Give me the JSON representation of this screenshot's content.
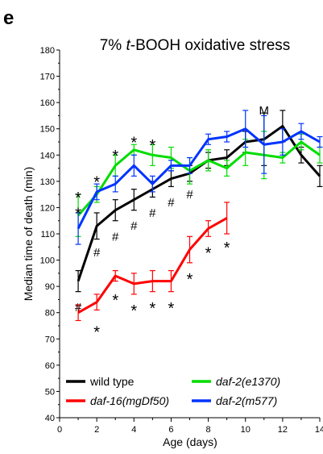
{
  "panel_label": "e",
  "chart_data": {
    "type": "line",
    "title_parts": [
      "7% ",
      "t",
      "-BOOH oxidative stress"
    ],
    "xlabel": "Age (days)",
    "ylabel": "Median time of death (min)",
    "xlim": [
      0,
      14
    ],
    "ylim": [
      40,
      180
    ],
    "xticks": [
      0,
      2,
      4,
      6,
      8,
      10,
      12,
      14
    ],
    "yticks": [
      40,
      50,
      60,
      70,
      80,
      90,
      100,
      110,
      120,
      130,
      140,
      150,
      160,
      170,
      180
    ],
    "grid": false,
    "legend_position": "bottom",
    "series": [
      {
        "name": "wild type",
        "italic": false,
        "color": "#000000",
        "x": [
          1,
          2,
          3,
          4,
          5,
          6,
          7,
          8,
          9,
          10,
          11,
          12,
          13,
          14
        ],
        "y": [
          92,
          113,
          119,
          123,
          127,
          131,
          133,
          138,
          139,
          145,
          146,
          151,
          140,
          132
        ],
        "err": [
          4,
          5,
          4,
          4,
          3,
          3,
          3,
          3,
          3,
          4,
          10,
          6,
          3,
          4
        ]
      },
      {
        "name": "daf-16(mgDf50)",
        "italic": true,
        "color": "#ff0000",
        "x": [
          1,
          2,
          3,
          4,
          5,
          6,
          7,
          8,
          9
        ],
        "y": [
          80,
          84,
          94,
          91,
          92,
          92,
          104,
          112,
          116
        ],
        "err": [
          3,
          3,
          2,
          4,
          4,
          4,
          5,
          3,
          6
        ]
      },
      {
        "name": "daf-2(e1370)",
        "italic": true,
        "color": "#00dd00",
        "x": [
          1,
          2,
          3,
          4,
          5,
          6,
          7,
          8,
          9,
          10,
          11,
          12,
          13,
          14
        ],
        "y": [
          117,
          125,
          136,
          142,
          140,
          139,
          134,
          138,
          135,
          141,
          140,
          139,
          145,
          140
        ],
        "err": [
          8,
          3,
          4,
          2,
          4,
          4,
          5,
          4,
          3,
          5,
          9,
          2,
          3,
          3
        ]
      },
      {
        "name": "daf-2(m577)",
        "italic": true,
        "color": "#0033ff",
        "x": [
          1,
          2,
          3,
          4,
          5,
          6,
          7,
          8,
          9,
          10,
          11,
          12,
          13,
          14
        ],
        "y": [
          112,
          126,
          129,
          136,
          129,
          136,
          136,
          146,
          147,
          150,
          144,
          145,
          149,
          145
        ],
        "err": [
          6,
          3,
          3,
          4,
          3,
          2,
          3,
          2,
          2,
          7,
          11,
          5,
          3,
          2
        ]
      }
    ],
    "annotations": [
      {
        "text": "*",
        "x": 1,
        "y": 125,
        "color": "#00dd00"
      },
      {
        "text": "*",
        "x": 3,
        "y": 141,
        "color": "#00dd00"
      },
      {
        "text": "*",
        "x": 4,
        "y": 146,
        "color": "#00dd00"
      },
      {
        "text": "*",
        "x": 5,
        "y": 145,
        "color": "#00dd00"
      },
      {
        "text": "*",
        "x": 1,
        "y": 119,
        "color": "#0033ff"
      },
      {
        "text": "*",
        "x": 2,
        "y": 131,
        "color": "#0033ff"
      },
      {
        "text": "#",
        "x": 1,
        "y": 82,
        "color": "#000000"
      },
      {
        "text": "#",
        "x": 2,
        "y": 103,
        "color": "#000000"
      },
      {
        "text": "#",
        "x": 3,
        "y": 109,
        "color": "#000000"
      },
      {
        "text": "#",
        "x": 4,
        "y": 113,
        "color": "#000000"
      },
      {
        "text": "#",
        "x": 5,
        "y": 118,
        "color": "#000000"
      },
      {
        "text": "#",
        "x": 6,
        "y": 122,
        "color": "#000000"
      },
      {
        "text": "#",
        "x": 7,
        "y": 125,
        "color": "#000000"
      },
      {
        "text": "*",
        "x": 2,
        "y": 74,
        "color": "#ff0000"
      },
      {
        "text": "*",
        "x": 3,
        "y": 86,
        "color": "#ff0000"
      },
      {
        "text": "*",
        "x": 4,
        "y": 82,
        "color": "#ff0000"
      },
      {
        "text": "*",
        "x": 5,
        "y": 83,
        "color": "#ff0000"
      },
      {
        "text": "*",
        "x": 6,
        "y": 83,
        "color": "#ff0000"
      },
      {
        "text": "*",
        "x": 7,
        "y": 94,
        "color": "#ff0000"
      },
      {
        "text": "*",
        "x": 8,
        "y": 104,
        "color": "#ff0000"
      },
      {
        "text": "*",
        "x": 9,
        "y": 106,
        "color": "#ff0000"
      },
      {
        "text": "M",
        "x": 11,
        "y": 157,
        "color": "#000000"
      }
    ],
    "legend": [
      {
        "series": 0
      },
      {
        "series": 2
      },
      {
        "series": 1
      },
      {
        "series": 3
      }
    ]
  }
}
